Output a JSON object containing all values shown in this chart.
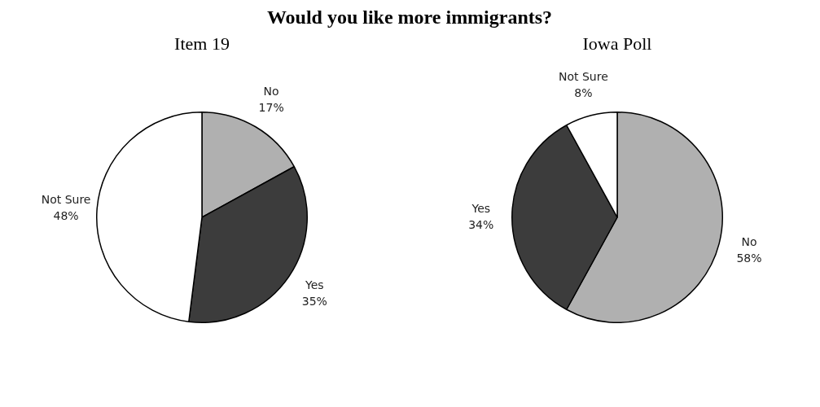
{
  "chart_data": [
    {
      "type": "pie",
      "title": "Would you like more immigrants?",
      "subtitle": "Item 19",
      "categories": [
        "No",
        "Yes",
        "Not Sure"
      ],
      "values": [
        17,
        35,
        48
      ],
      "colors": [
        "#b0b0b0",
        "#3c3c3c",
        "#ffffff"
      ],
      "value_labels": [
        "17%",
        "35%",
        "48%"
      ],
      "legend": false
    },
    {
      "type": "pie",
      "subtitle": "Iowa Poll",
      "categories": [
        "No",
        "Yes",
        "Not Sure"
      ],
      "values": [
        58,
        34,
        8
      ],
      "colors": [
        "#b0b0b0",
        "#3c3c3c",
        "#ffffff"
      ],
      "value_labels": [
        "58%",
        "34%",
        "8%"
      ],
      "legend": false
    }
  ]
}
